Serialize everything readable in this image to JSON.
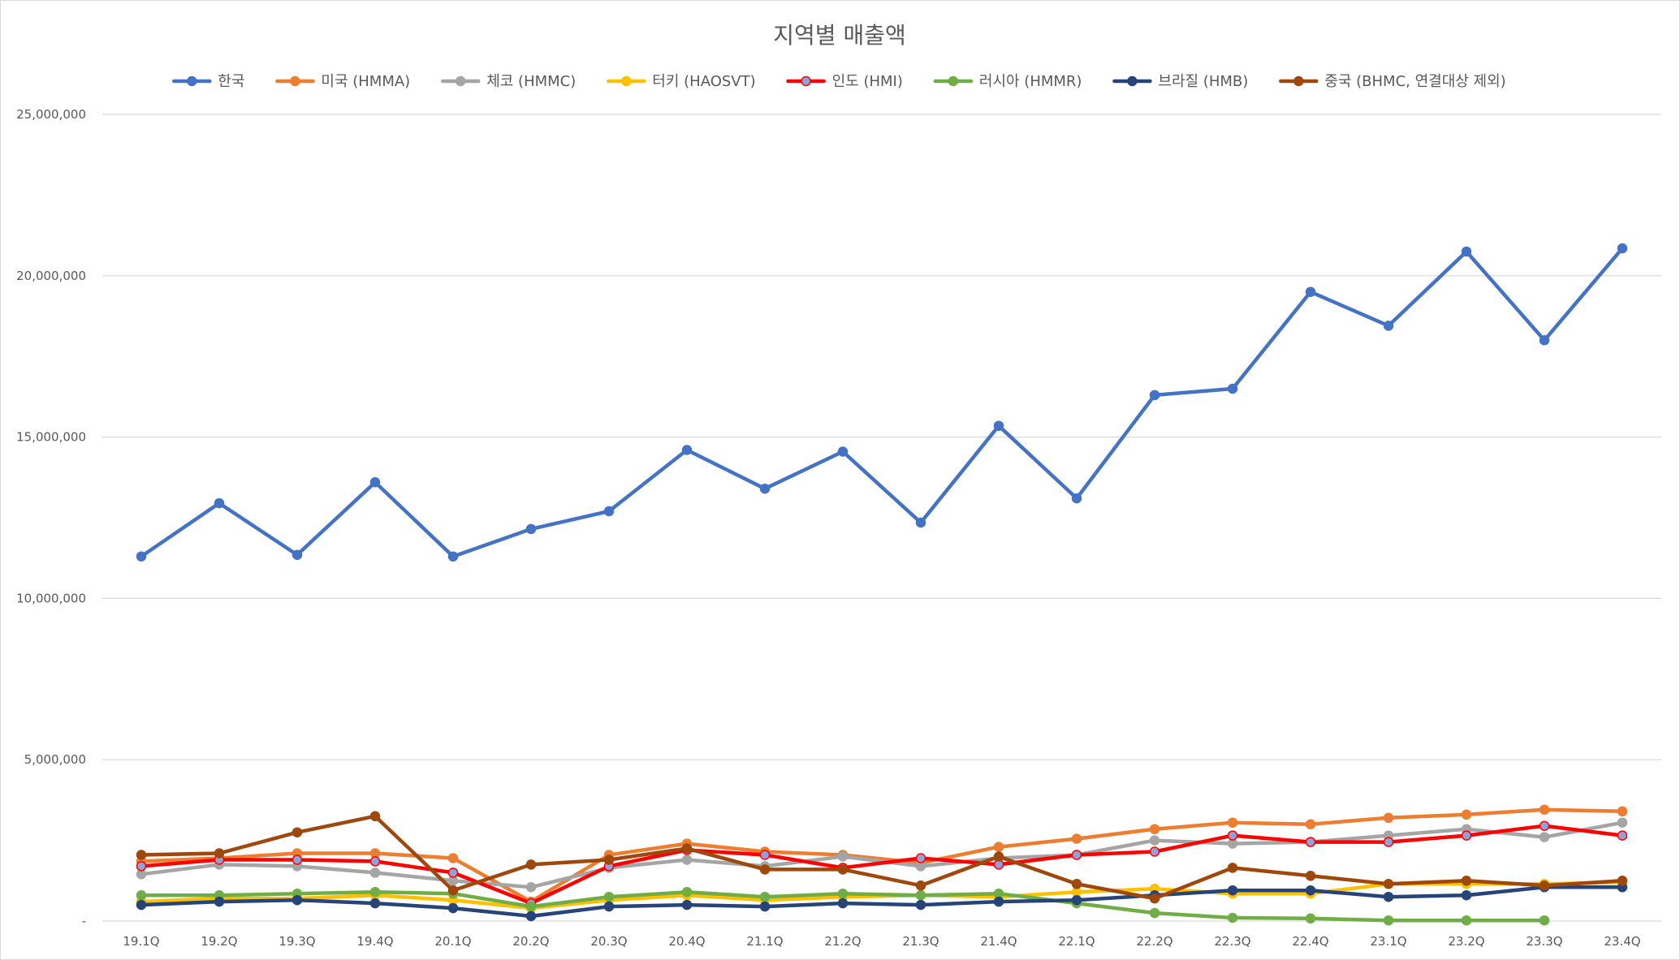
{
  "chart_data": {
    "type": "line",
    "title": "지역별 매출액",
    "xlabel": "",
    "ylabel": "",
    "ylim": [
      0,
      25000000
    ],
    "yticks": [
      0,
      5000000,
      10000000,
      15000000,
      20000000,
      25000000
    ],
    "ytick_labels": [
      "-",
      "5,000,000",
      "10,000,000",
      "15,000,000",
      "20,000,000",
      "25,000,000"
    ],
    "grid": true,
    "legend_position": "top",
    "categories": [
      "19.1Q",
      "19.2Q",
      "19.3Q",
      "19.4Q",
      "20.1Q",
      "20.2Q",
      "20.3Q",
      "20.4Q",
      "21.1Q",
      "21.2Q",
      "21.3Q",
      "21.4Q",
      "22.1Q",
      "22.2Q",
      "22.3Q",
      "22.4Q",
      "23.1Q",
      "23.2Q",
      "23.3Q",
      "23.4Q"
    ],
    "series": [
      {
        "name": "한국",
        "color": "#4472c4",
        "marker_fill": "#4472c4",
        "values": [
          11300000,
          12950000,
          11350000,
          13600000,
          11300000,
          12150000,
          12700000,
          14600000,
          13400000,
          14550000,
          12350000,
          15350000,
          13100000,
          16300000,
          16500000,
          19500000,
          18450000,
          20750000,
          18000000,
          20850000
        ]
      },
      {
        "name": "미국 (HMMA)",
        "color": "#ed7d31",
        "marker_fill": "#ed7d31",
        "values": [
          1850000,
          1950000,
          2100000,
          2100000,
          1950000,
          600000,
          2050000,
          2400000,
          2150000,
          2050000,
          1800000,
          2300000,
          2550000,
          2850000,
          3050000,
          3000000,
          3200000,
          3300000,
          3450000,
          3400000
        ]
      },
      {
        "name": "체코 (HMMC)",
        "color": "#a5a5a5",
        "marker_fill": "#a5a5a5",
        "values": [
          1450000,
          1750000,
          1700000,
          1500000,
          1250000,
          1050000,
          1650000,
          1900000,
          1700000,
          2000000,
          1700000,
          1950000,
          2050000,
          2500000,
          2400000,
          2450000,
          2650000,
          2850000,
          2600000,
          3050000
        ]
      },
      {
        "name": "터키 (HAOSVT)",
        "color": "#ffc000",
        "marker_fill": "#ffc000",
        "values": [
          600000,
          700000,
          700000,
          800000,
          650000,
          400000,
          650000,
          800000,
          650000,
          750000,
          800000,
          750000,
          900000,
          1000000,
          850000,
          850000,
          1150000,
          1150000,
          1150000,
          1200000
        ]
      },
      {
        "name": "인도 (HMI)",
        "color": "#ff0000",
        "marker_fill": "#8fa3d9",
        "values": [
          1700000,
          1900000,
          1900000,
          1850000,
          1500000,
          550000,
          1700000,
          2200000,
          2050000,
          1650000,
          1950000,
          1750000,
          2050000,
          2150000,
          2650000,
          2450000,
          2450000,
          2650000,
          2950000,
          2650000
        ]
      },
      {
        "name": "러시아 (HMMR)",
        "color": "#70ad47",
        "marker_fill": "#70ad47",
        "values": [
          800000,
          800000,
          850000,
          900000,
          850000,
          450000,
          750000,
          900000,
          750000,
          850000,
          800000,
          850000,
          550000,
          250000,
          100000,
          80000,
          20000,
          20000,
          20000,
          null
        ]
      },
      {
        "name": "브라질 (HMB)",
        "color": "#264478",
        "marker_fill": "#264478",
        "values": [
          500000,
          600000,
          650000,
          550000,
          400000,
          150000,
          450000,
          500000,
          450000,
          550000,
          500000,
          600000,
          650000,
          800000,
          950000,
          950000,
          750000,
          800000,
          1050000,
          1050000
        ]
      },
      {
        "name": "중국 (BHMC, 연결대상 제외)",
        "color": "#9e480e",
        "marker_fill": "#9e480e",
        "values": [
          2050000,
          2100000,
          2750000,
          3250000,
          950000,
          1750000,
          1900000,
          2250000,
          1600000,
          1600000,
          1100000,
          2000000,
          1150000,
          700000,
          1650000,
          1400000,
          1150000,
          1250000,
          1100000,
          1250000
        ]
      }
    ]
  }
}
